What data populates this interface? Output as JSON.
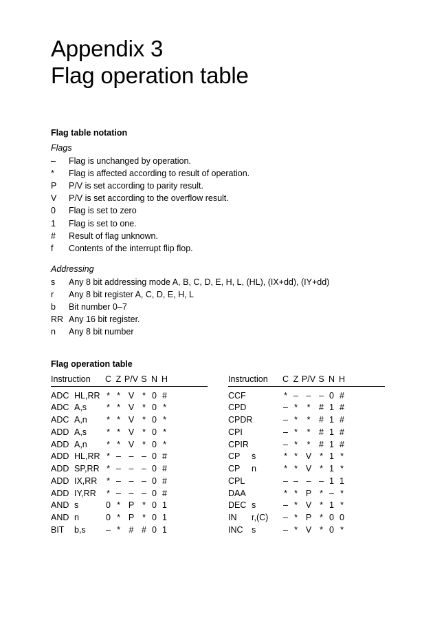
{
  "title_line1": "Appendix 3",
  "title_line2": "Flag operation table",
  "notation_heading": "Flag table notation",
  "flags_heading": "Flags",
  "flags_notation": [
    {
      "sym": "–",
      "desc": "Flag is unchanged by operation."
    },
    {
      "sym": "*",
      "desc": "Flag is affected according to result of operation."
    },
    {
      "sym": "P",
      "desc": "P/V is set according to parity result."
    },
    {
      "sym": "V",
      "desc": "P/V is set according to the overflow result."
    },
    {
      "sym": "0",
      "desc": "Flag is set to zero"
    },
    {
      "sym": "1",
      "desc": "Flag is set to one."
    },
    {
      "sym": "#",
      "desc": "Result of flag unknown."
    },
    {
      "sym": "f",
      "desc": "Contents of the interrupt flip flop."
    }
  ],
  "addr_heading": "Addressing",
  "addr_notation": [
    {
      "sym": "s",
      "desc": "Any 8 bit addressing mode A, B, C, D, E, H, L, (HL), (IX+dd), (IY+dd)"
    },
    {
      "sym": "r",
      "desc": "Any 8 bit register A, C, D, E, H, L"
    },
    {
      "sym": "b",
      "desc": "Bit number 0–7"
    },
    {
      "sym": "RR",
      "desc": "Any 16 bit register."
    },
    {
      "sym": "n",
      "desc": "Any 8 bit number"
    }
  ],
  "table_heading": "Flag operation table",
  "col_headers": {
    "instr": "Instruction",
    "C": "C",
    "Z": "Z",
    "PV": "P/V",
    "S": "S",
    "N": "N",
    "H": "H"
  },
  "left_rows": [
    {
      "mn": "ADC",
      "op": "HL,RR",
      "C": "*",
      "Z": "*",
      "PV": "V",
      "S": "*",
      "N": "0",
      "H": "#"
    },
    {
      "mn": "ADC",
      "op": "A,s",
      "C": "*",
      "Z": "*",
      "PV": "V",
      "S": "*",
      "N": "0",
      "H": "*"
    },
    {
      "mn": "ADC",
      "op": "A,n",
      "C": "*",
      "Z": "*",
      "PV": "V",
      "S": "*",
      "N": "0",
      "H": "*"
    },
    {
      "mn": "ADD",
      "op": "A,s",
      "C": "*",
      "Z": "*",
      "PV": "V",
      "S": "*",
      "N": "0",
      "H": "*"
    },
    {
      "mn": "ADD",
      "op": "A,n",
      "C": "*",
      "Z": "*",
      "PV": "V",
      "S": "*",
      "N": "0",
      "H": "*"
    },
    {
      "mn": "ADD",
      "op": "HL,RR",
      "C": "*",
      "Z": "–",
      "PV": "–",
      "S": "–",
      "N": "0",
      "H": "#"
    },
    {
      "mn": "ADD",
      "op": "SP,RR",
      "C": "*",
      "Z": "–",
      "PV": "–",
      "S": "–",
      "N": "0",
      "H": "#"
    },
    {
      "mn": "ADD",
      "op": "IX,RR",
      "C": "*",
      "Z": "–",
      "PV": "–",
      "S": "–",
      "N": "0",
      "H": "#"
    },
    {
      "mn": "ADD",
      "op": "IY,RR",
      "C": "*",
      "Z": "–",
      "PV": "–",
      "S": "–",
      "N": "0",
      "H": "#"
    },
    {
      "mn": "AND",
      "op": "s",
      "C": "0",
      "Z": "*",
      "PV": "P",
      "S": "*",
      "N": "0",
      "H": "1"
    },
    {
      "mn": "AND",
      "op": "n",
      "C": "0",
      "Z": "*",
      "PV": "P",
      "S": "*",
      "N": "0",
      "H": "1"
    },
    {
      "mn": "BIT",
      "op": "b,s",
      "C": "–",
      "Z": "*",
      "PV": "#",
      "S": "#",
      "N": "0",
      "H": "1"
    }
  ],
  "right_rows": [
    {
      "mn": "CCF",
      "op": "",
      "C": "*",
      "Z": "–",
      "PV": "–",
      "S": "–",
      "N": "0",
      "H": "#"
    },
    {
      "mn": "CPD",
      "op": "",
      "C": "–",
      "Z": "*",
      "PV": "*",
      "S": "#",
      "N": "1",
      "H": "#"
    },
    {
      "mn": "CPDR",
      "op": "",
      "C": "–",
      "Z": "*",
      "PV": "*",
      "S": "#",
      "N": "1",
      "H": "#"
    },
    {
      "mn": "CPI",
      "op": "",
      "C": "–",
      "Z": "*",
      "PV": "*",
      "S": "#",
      "N": "1",
      "H": "#"
    },
    {
      "mn": "CPIR",
      "op": "",
      "C": "–",
      "Z": "*",
      "PV": "*",
      "S": "#",
      "N": "1",
      "H": "#"
    },
    {
      "mn": "CP",
      "op": "s",
      "C": "*",
      "Z": "*",
      "PV": "V",
      "S": "*",
      "N": "1",
      "H": "*"
    },
    {
      "mn": "CP",
      "op": "n",
      "C": "*",
      "Z": "*",
      "PV": "V",
      "S": "*",
      "N": "1",
      "H": "*"
    },
    {
      "mn": "CPL",
      "op": "",
      "C": "–",
      "Z": "–",
      "PV": "–",
      "S": "–",
      "N": "1",
      "H": "1"
    },
    {
      "mn": "DAA",
      "op": "",
      "C": "*",
      "Z": "*",
      "PV": "P",
      "S": "*",
      "N": "–",
      "H": "*"
    },
    {
      "mn": "DEC",
      "op": "s",
      "C": "–",
      "Z": "*",
      "PV": "V",
      "S": "*",
      "N": "1",
      "H": "*"
    },
    {
      "mn": "IN",
      "op": "r,(C)",
      "C": "–",
      "Z": "*",
      "PV": "P",
      "S": "*",
      "N": "0",
      "H": "0"
    },
    {
      "mn": "INC",
      "op": "s",
      "C": "–",
      "Z": "*",
      "PV": "V",
      "S": "*",
      "N": "0",
      "H": "*"
    }
  ]
}
